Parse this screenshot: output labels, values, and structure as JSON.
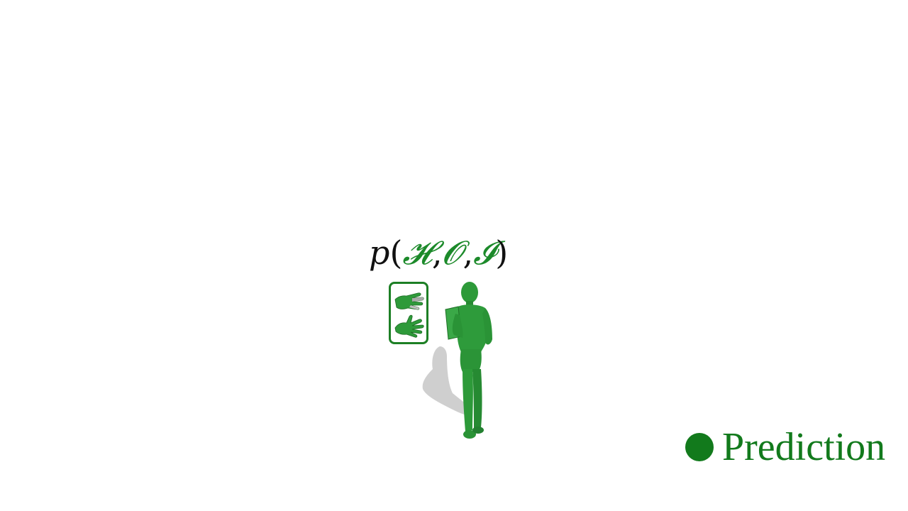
{
  "formula": {
    "fn": "p",
    "open": "(",
    "vars": [
      "𝓗",
      "𝓞",
      "𝓘"
    ],
    "sep": ",",
    "close": ")",
    "var_color": "#1c8a2a"
  },
  "legend": {
    "label": "Prediction",
    "color": "#127a1c"
  },
  "icons": {
    "hands": "hands-icon",
    "figure": "human-figure-icon"
  }
}
